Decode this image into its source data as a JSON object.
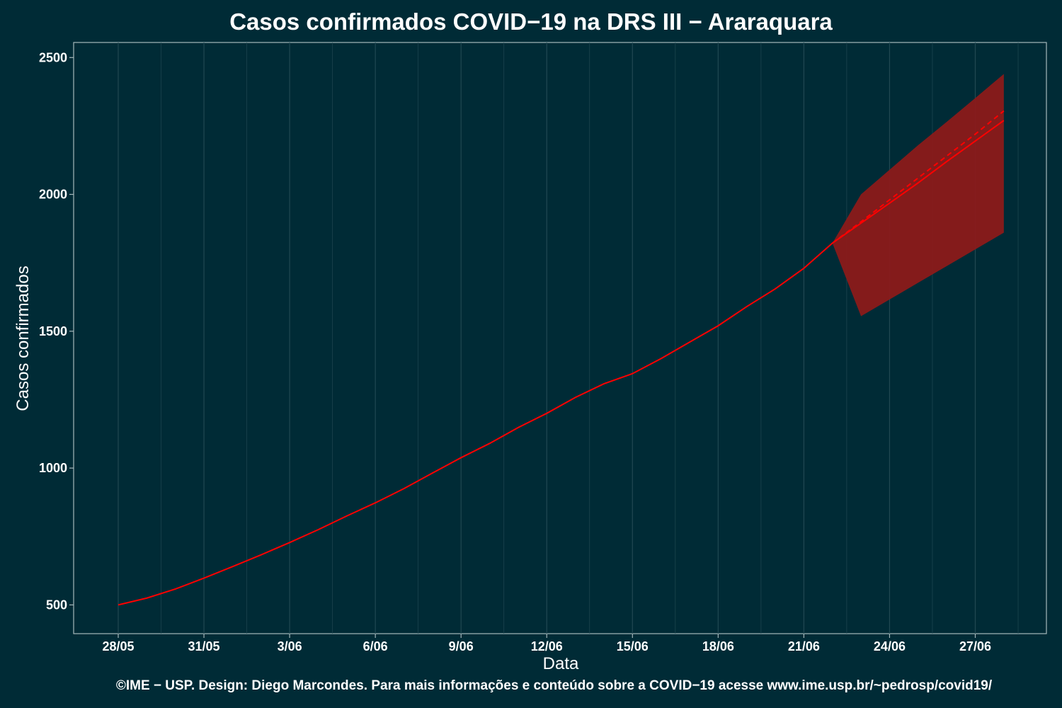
{
  "chart_data": {
    "type": "line",
    "title": "Casos confirmados COVID−19 na DRS III − Araraquara",
    "xlabel": "Data",
    "ylabel": "Casos confirmados",
    "x_tick_labels": [
      "28/05",
      "31/05",
      "3/06",
      "6/06",
      "9/06",
      "12/06",
      "15/06",
      "18/06",
      "21/06",
      "24/06",
      "27/06"
    ],
    "y_ticks": [
      500,
      1000,
      1500,
      2000,
      2500
    ],
    "ylim": [
      395,
      2555
    ],
    "grid": "vertical",
    "colors": {
      "background": "#002b36",
      "line": "#ff0000",
      "band": "#8b1a1a",
      "grid": "#214852",
      "axis": "#a7b8bb"
    },
    "series": [
      {
        "dates": [
          "2020-05-28",
          "2020-05-29",
          "2020-05-30",
          "2020-05-31",
          "2020-06-01",
          "2020-06-02",
          "2020-06-03",
          "2020-06-04",
          "2020-06-05",
          "2020-06-06",
          "2020-06-07",
          "2020-06-08",
          "2020-06-09",
          "2020-06-10",
          "2020-06-11",
          "2020-06-12",
          "2020-06-13",
          "2020-06-14",
          "2020-06-15",
          "2020-06-16",
          "2020-06-17",
          "2020-06-18",
          "2020-06-19",
          "2020-06-20",
          "2020-06-21",
          "2020-06-22"
        ],
        "values": [
          500,
          525,
          558,
          598,
          640,
          683,
          728,
          775,
          825,
          873,
          925,
          982,
          1038,
          1090,
          1148,
          1200,
          1258,
          1308,
          1345,
          1400,
          1460,
          1520,
          1590,
          1655,
          1730,
          1822
        ],
        "style": "solid"
      }
    ],
    "forecast": {
      "dates": [
        "2020-06-22",
        "2020-06-23",
        "2020-06-24",
        "2020-06-25",
        "2020-06-26",
        "2020-06-27",
        "2020-06-28"
      ],
      "mean": [
        1822,
        1895,
        1968,
        2042,
        2120,
        2195,
        2270
      ],
      "median": [
        1822,
        1900,
        1980,
        2060,
        2140,
        2220,
        2305
      ],
      "band_upper": [
        1822,
        2000,
        2090,
        2180,
        2265,
        2352,
        2440
      ],
      "band_lower": [
        1822,
        1555,
        1616,
        1677,
        1738,
        1799,
        1860
      ]
    }
  },
  "footer": "©IME − USP. Design: Diego Marcondes. Para mais informações e conteúdo sobre a COVID−19 acesse www.ime.usp.br/~pedrosp/covid19/"
}
